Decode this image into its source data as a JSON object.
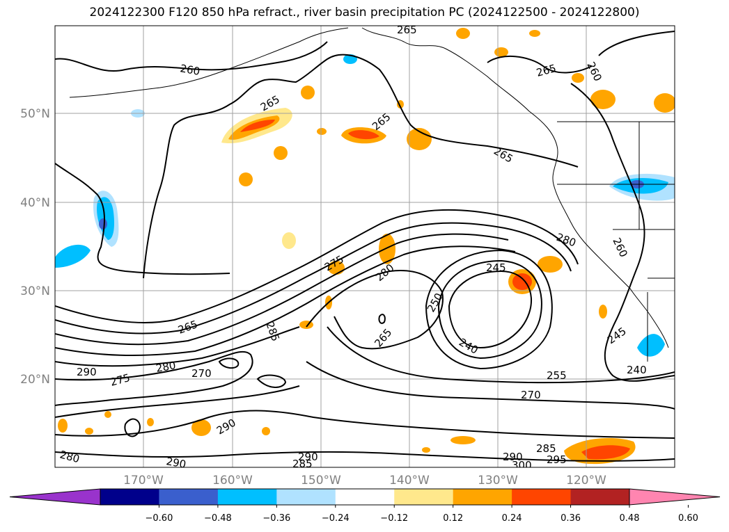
{
  "title": "2024122300 F120 850 hPa refract., river basin precipitation PC (2024122500 - 2024122800)",
  "lat_labels": [
    "50°N",
    "40°N",
    "30°N",
    "20°N"
  ],
  "lon_labels": [
    "170°W",
    "160°W",
    "150°W",
    "140°W",
    "130°W",
    "120°W"
  ],
  "contour_labels": [
    "265",
    "260",
    "265",
    "265",
    "260",
    "265",
    "265",
    "280",
    "260",
    "275",
    "280",
    "245",
    "250",
    "285",
    "265",
    "240",
    "265",
    "245",
    "290",
    "280",
    "270",
    "275",
    "290",
    "255",
    "240",
    "270",
    "280",
    "290",
    "290",
    "285",
    "285",
    "295",
    "300",
    "290"
  ],
  "colorbar": {
    "ticks": [
      "−0.60",
      "−0.48",
      "−0.36",
      "−0.24",
      "−0.12",
      "0.12",
      "0.24",
      "0.36",
      "0.48",
      "0.60"
    ],
    "colors": [
      "#9933cc",
      "#00008b",
      "#3a5fcd",
      "#00bfff",
      "#b0e2ff",
      "#ffffff",
      "#ffe88c",
      "#ffa500",
      "#ff4500",
      "#b22222",
      "#ff85b0"
    ]
  },
  "colors": {
    "map_frame": "#000000",
    "grid": "#a0a0a0",
    "coast": "#000000",
    "contour": "#000000"
  }
}
